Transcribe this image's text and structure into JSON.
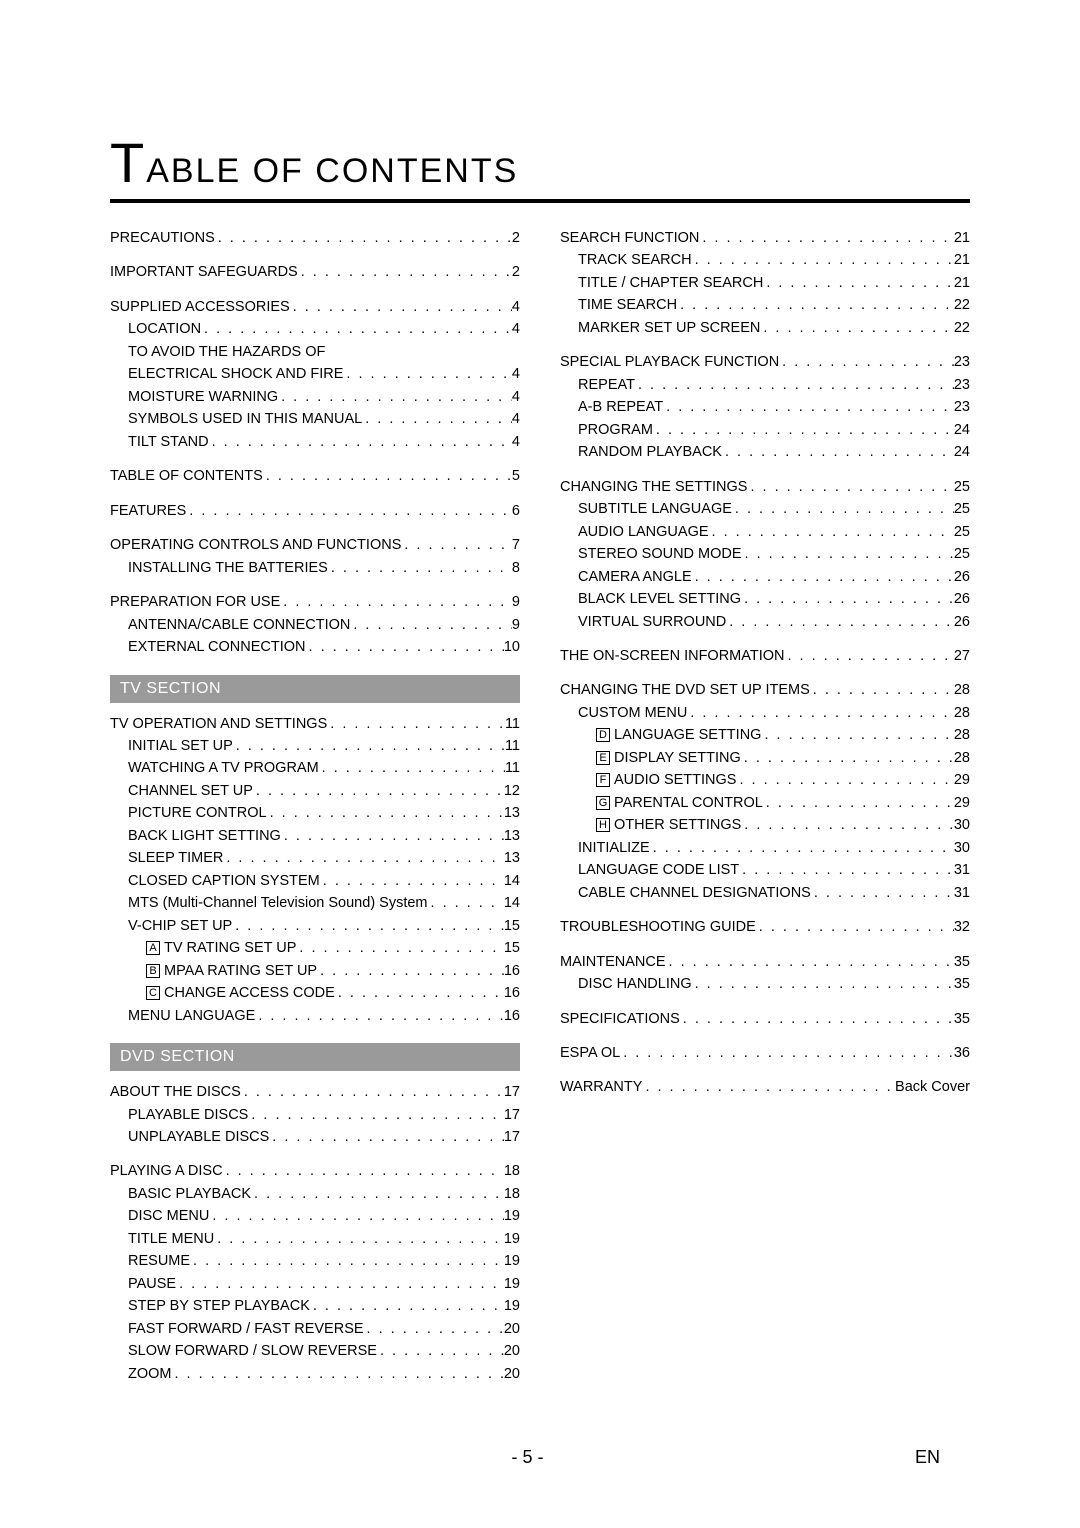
{
  "title_prefix_big": "T",
  "title_rest": "ABLE OF CONTENTS",
  "footer_page": "- 5 -",
  "footer_lang": "EN",
  "section_tv": "TV SECTION",
  "section_dvd": "DVD SECTION",
  "col1": [
    {
      "group": [
        {
          "t": "PRECAUTIONS",
          "p": "2",
          "i": 0
        }
      ]
    },
    {
      "group": [
        {
          "t": "IMPORTANT SAFEGUARDS",
          "p": "2",
          "i": 0
        }
      ]
    },
    {
      "group": [
        {
          "t": "SUPPLIED ACCESSORIES",
          "p": "4",
          "i": 0
        },
        {
          "t": "LOCATION",
          "p": "4",
          "i": 1
        },
        {
          "t": "TO AVOID THE HAZARDS OF",
          "nopg": true,
          "i": 1
        },
        {
          "t": "ELECTRICAL SHOCK AND FIRE",
          "p": "4",
          "i": 1
        },
        {
          "t": "MOISTURE WARNING",
          "p": "4",
          "i": 1
        },
        {
          "t": "SYMBOLS USED IN THIS MANUAL",
          "p": "4",
          "i": 1
        },
        {
          "t": "TILT STAND",
          "p": "4",
          "i": 1
        }
      ]
    },
    {
      "group": [
        {
          "t": "TABLE OF CONTENTS",
          "p": "5",
          "i": 0
        }
      ]
    },
    {
      "group": [
        {
          "t": "FEATURES",
          "p": "6",
          "i": 0
        }
      ]
    },
    {
      "group": [
        {
          "t": "OPERATING CONTROLS AND FUNCTIONS",
          "p": "7",
          "i": 0
        },
        {
          "t": "INSTALLING THE BATTERIES",
          "p": "8",
          "i": 1
        }
      ]
    },
    {
      "group": [
        {
          "t": "PREPARATION FOR USE",
          "p": "9",
          "i": 0
        },
        {
          "t": "ANTENNA/CABLE CONNECTION",
          "p": "9",
          "i": 1
        },
        {
          "t": "EXTERNAL CONNECTION",
          "p": "10",
          "i": 1
        }
      ]
    }
  ],
  "col1_tv": [
    {
      "group": [
        {
          "t": "TV OPERATION AND SETTINGS",
          "p": "11",
          "i": 0
        },
        {
          "t": "INITIAL SET UP",
          "p": "11",
          "i": 1
        },
        {
          "t": "WATCHING A TV PROGRAM",
          "p": "11",
          "i": 1
        },
        {
          "t": "CHANNEL SET UP",
          "p": "12",
          "i": 1
        },
        {
          "t": "PICTURE CONTROL",
          "p": "13",
          "i": 1
        },
        {
          "t": "BACK LIGHT SETTING",
          "p": "13",
          "i": 1
        },
        {
          "t": "SLEEP TIMER",
          "p": "13",
          "i": 1
        },
        {
          "t": "CLOSED CAPTION SYSTEM",
          "p": "14",
          "i": 1
        },
        {
          "t": "MTS (Multi-Channel Television Sound) System",
          "p": "14",
          "i": 1
        },
        {
          "t": "V-CHIP SET UP",
          "p": "15",
          "i": 1
        },
        {
          "box": "A",
          "t": "TV RATING SET UP",
          "p": "15",
          "i": 2
        },
        {
          "box": "B",
          "t": "MPAA RATING SET UP",
          "p": "16",
          "i": 2
        },
        {
          "box": "C",
          "t": "CHANGE ACCESS CODE",
          "p": "16",
          "i": 2
        },
        {
          "t": "MENU LANGUAGE",
          "p": "16",
          "i": 1
        }
      ]
    }
  ],
  "col1_dvd": [
    {
      "group": [
        {
          "t": "ABOUT THE DISCS",
          "p": "17",
          "i": 0
        },
        {
          "t": "PLAYABLE DISCS",
          "p": "17",
          "i": 1
        },
        {
          "t": "UNPLAYABLE DISCS",
          "p": "17",
          "i": 1
        }
      ]
    },
    {
      "group": [
        {
          "t": "PLAYING A DISC",
          "p": "18",
          "i": 0
        },
        {
          "t": "BASIC PLAYBACK",
          "p": "18",
          "i": 1
        },
        {
          "t": "DISC MENU",
          "p": "19",
          "i": 1
        },
        {
          "t": "TITLE MENU",
          "p": "19",
          "i": 1
        },
        {
          "t": "RESUME",
          "p": "19",
          "i": 1
        },
        {
          "t": "PAUSE",
          "p": "19",
          "i": 1
        },
        {
          "t": "STEP BY STEP PLAYBACK",
          "p": "19",
          "i": 1
        },
        {
          "t": "FAST FORWARD / FAST REVERSE",
          "p": "20",
          "i": 1
        },
        {
          "t": "SLOW FORWARD / SLOW REVERSE",
          "p": "20",
          "i": 1
        },
        {
          "t": "ZOOM",
          "p": "20",
          "i": 1
        }
      ]
    }
  ],
  "col2": [
    {
      "group": [
        {
          "t": "SEARCH FUNCTION",
          "p": "21",
          "i": 0
        },
        {
          "t": "TRACK SEARCH",
          "p": "21",
          "i": 1
        },
        {
          "t": "TITLE / CHAPTER SEARCH",
          "p": "21",
          "i": 1
        },
        {
          "t": "TIME SEARCH",
          "p": "22",
          "i": 1
        },
        {
          "t": "MARKER SET UP SCREEN",
          "p": "22",
          "i": 1
        }
      ]
    },
    {
      "group": [
        {
          "t": "SPECIAL PLAYBACK FUNCTION",
          "p": "23",
          "i": 0
        },
        {
          "t": "REPEAT",
          "p": "23",
          "i": 1
        },
        {
          "t": "A-B REPEAT",
          "p": "23",
          "i": 1
        },
        {
          "t": "PROGRAM",
          "p": "24",
          "i": 1
        },
        {
          "t": "RANDOM PLAYBACK",
          "p": "24",
          "i": 1
        }
      ]
    },
    {
      "group": [
        {
          "t": "CHANGING THE SETTINGS",
          "p": "25",
          "i": 0
        },
        {
          "t": "SUBTITLE LANGUAGE",
          "p": "25",
          "i": 1
        },
        {
          "t": "AUDIO LANGUAGE",
          "p": "25",
          "i": 1
        },
        {
          "t": "STEREO SOUND MODE",
          "p": "25",
          "i": 1
        },
        {
          "t": "CAMERA ANGLE",
          "p": "26",
          "i": 1
        },
        {
          "t": "BLACK LEVEL SETTING",
          "p": "26",
          "i": 1
        },
        {
          "t": "VIRTUAL SURROUND",
          "p": "26",
          "i": 1
        }
      ]
    },
    {
      "group": [
        {
          "t": "THE ON-SCREEN INFORMATION",
          "p": "27",
          "i": 0
        }
      ]
    },
    {
      "group": [
        {
          "t": "CHANGING THE DVD SET UP ITEMS",
          "p": "28",
          "i": 0
        },
        {
          "t": "CUSTOM MENU",
          "p": "28",
          "i": 1
        },
        {
          "box": "D",
          "t": "LANGUAGE SETTING",
          "p": "28",
          "i": 2
        },
        {
          "box": "E",
          "t": "DISPLAY SETTING",
          "p": "28",
          "i": 2
        },
        {
          "box": "F",
          "t": "AUDIO SETTINGS",
          "p": "29",
          "i": 2
        },
        {
          "box": "G",
          "t": "PARENTAL CONTROL",
          "p": "29",
          "i": 2
        },
        {
          "box": "H",
          "t": "OTHER SETTINGS",
          "p": "30",
          "i": 2
        },
        {
          "t": "INITIALIZE",
          "p": "30",
          "i": 1
        },
        {
          "t": "LANGUAGE CODE LIST",
          "p": "31",
          "i": 1
        },
        {
          "t": "CABLE CHANNEL DESIGNATIONS",
          "p": "31",
          "i": 1
        }
      ]
    },
    {
      "group": [
        {
          "t": "TROUBLESHOOTING GUIDE",
          "p": "32",
          "i": 0
        }
      ]
    },
    {
      "group": [
        {
          "t": "MAINTENANCE",
          "p": "35",
          "i": 0
        },
        {
          "t": "DISC HANDLING",
          "p": "35",
          "i": 1
        }
      ]
    },
    {
      "group": [
        {
          "t": "SPECIFICATIONS",
          "p": "35",
          "i": 0
        }
      ]
    },
    {
      "group": [
        {
          "t": "ESPA  OL",
          "p": "36",
          "i": 0
        }
      ]
    },
    {
      "group": [
        {
          "t": "WARRANTY",
          "p": "Back Cover",
          "i": 0
        }
      ]
    }
  ]
}
